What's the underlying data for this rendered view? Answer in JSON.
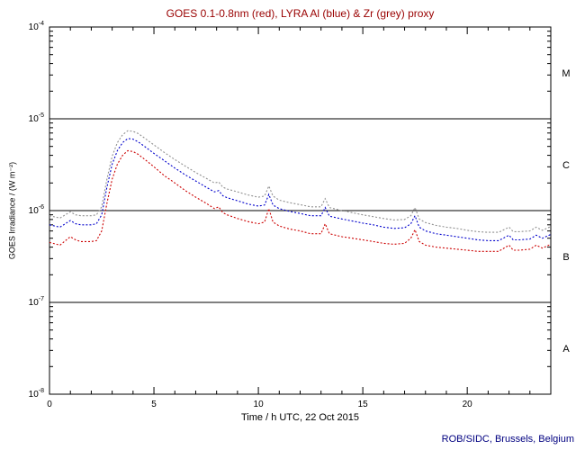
{
  "footer": {
    "credit": "ROB/SIDC, Brussels, Belgium"
  },
  "colors": {
    "title_text": "#990000",
    "footer_text": "#000080",
    "axis": "#000000",
    "goes_red": "#cc0000",
    "lyra_al_blue": "#0000cc",
    "lyra_zr_grey": "#909090"
  },
  "chart_data": {
    "type": "line",
    "title": "GOES 0.1-0.8nm (red), LYRA Al (blue) & Zr (grey) proxy",
    "xlabel": "Time / h UTC, 22 Oct 2015",
    "ylabel": "GOES Irradiance / (W m⁻²)",
    "x_range": [
      0,
      24
    ],
    "y_log_range": [
      -8,
      -4
    ],
    "x_major_ticks": [
      0,
      5,
      10,
      15,
      20
    ],
    "x_minor_step": 1,
    "y_decades": [
      -8,
      -7,
      -6,
      -5,
      -4
    ],
    "hlines_log": [
      -5,
      -6,
      -7
    ],
    "grid": false,
    "legend": "in title (color-coded)",
    "flare_classes": [
      {
        "label": "M",
        "log_center": -4.5
      },
      {
        "label": "C",
        "log_center": -5.5
      },
      {
        "label": "B",
        "log_center": -6.5
      },
      {
        "label": "A",
        "log_center": -7.5
      }
    ],
    "x": [
      0,
      0.5,
      1,
      1.25,
      1.5,
      2,
      2.25,
      2.5,
      2.75,
      3,
      3.25,
      3.5,
      3.75,
      4,
      4.25,
      4.5,
      5,
      5.5,
      6,
      6.5,
      7,
      7.5,
      7.9,
      8.1,
      8.3,
      8.5,
      9,
      9.5,
      10,
      10.3,
      10.5,
      10.7,
      11,
      11.5,
      12,
      12.5,
      13,
      13.2,
      13.4,
      14,
      14.5,
      15,
      15.5,
      16,
      16.5,
      17,
      17.3,
      17.5,
      17.7,
      18,
      18.5,
      19,
      19.5,
      20,
      20.5,
      21,
      21.5,
      22,
      22.2,
      22.5,
      23,
      23.3,
      23.6,
      24
    ],
    "series": [
      {
        "name": "LYRA Zr proxy",
        "key": "lyra-zr",
        "color": "#909090",
        "values": [
          8.8e-07,
          8.3e-07,
          9.7e-07,
          9e-07,
          8.8e-07,
          8.8e-07,
          9e-07,
          1.1e-06,
          2.2e-06,
          3.9e-06,
          5.5e-06,
          6.7e-06,
          7.4e-06,
          7.3e-06,
          6.9e-06,
          6.3e-06,
          5.2e-06,
          4.3e-06,
          3.6e-06,
          3.05e-06,
          2.6e-06,
          2.25e-06,
          2e-06,
          2.05e-06,
          1.8e-06,
          1.72e-06,
          1.6e-06,
          1.48e-06,
          1.4e-06,
          1.44e-06,
          1.85e-06,
          1.44e-06,
          1.3e-06,
          1.22e-06,
          1.16e-06,
          1.1e-06,
          1.1e-06,
          1.35e-06,
          1.08e-06,
          1e-06,
          9.5e-07,
          9e-07,
          8.6e-07,
          8.2e-07,
          7.9e-07,
          8e-07,
          8.8e-07,
          1.08e-06,
          8.1e-07,
          7.4e-07,
          6.9e-07,
          6.6e-07,
          6.4e-07,
          6.1e-07,
          5.9e-07,
          5.8e-07,
          5.8e-07,
          6.6e-07,
          5.9e-07,
          5.9e-07,
          6e-07,
          6.6e-07,
          6.1e-07,
          6.7e-07
        ]
      },
      {
        "name": "LYRA Al proxy",
        "key": "lyra-al",
        "color": "#0000cc",
        "values": [
          7e-07,
          6.6e-07,
          7.8e-07,
          7.2e-07,
          7e-07,
          7e-07,
          7.2e-07,
          9e-07,
          1.8e-06,
          3.2e-06,
          4.5e-06,
          5.5e-06,
          6.1e-06,
          6e-06,
          5.6e-06,
          5.1e-06,
          4.2e-06,
          3.5e-06,
          2.9e-06,
          2.45e-06,
          2.1e-06,
          1.8e-06,
          1.6e-06,
          1.65e-06,
          1.45e-06,
          1.38e-06,
          1.28e-06,
          1.18e-06,
          1.12e-06,
          1.15e-06,
          1.5e-06,
          1.15e-06,
          1.05e-06,
          9.8e-07,
          9.3e-07,
          8.8e-07,
          8.8e-07,
          1.08e-06,
          8.7e-07,
          8.1e-07,
          7.7e-07,
          7.3e-07,
          7e-07,
          6.6e-07,
          6.4e-07,
          6.5e-07,
          7.2e-07,
          8.8e-07,
          6.6e-07,
          6e-07,
          5.6e-07,
          5.4e-07,
          5.2e-07,
          5e-07,
          4.8e-07,
          4.7e-07,
          4.7e-07,
          5.4e-07,
          4.8e-07,
          4.8e-07,
          4.9e-07,
          5.4e-07,
          5e-07,
          5.5e-07
        ]
      },
      {
        "name": "GOES 0.1-0.8nm",
        "key": "goes",
        "color": "#cc0000",
        "values": [
          4.5e-07,
          4.2e-07,
          5.2e-07,
          4.8e-07,
          4.6e-07,
          4.6e-07,
          4.7e-07,
          6e-07,
          1.2e-06,
          2.2e-06,
          3.2e-06,
          4e-06,
          4.5e-06,
          4.4e-06,
          4.1e-06,
          3.7e-06,
          3e-06,
          2.4e-06,
          2e-06,
          1.65e-06,
          1.4e-06,
          1.2e-06,
          1.05e-06,
          1.1e-06,
          9.5e-07,
          9e-07,
          8.2e-07,
          7.6e-07,
          7.2e-07,
          7.5e-07,
          1.05e-06,
          7.5e-07,
          6.8e-07,
          6.3e-07,
          6e-07,
          5.6e-07,
          5.6e-07,
          7.2e-07,
          5.6e-07,
          5.2e-07,
          5e-07,
          4.8e-07,
          4.6e-07,
          4.4e-07,
          4.3e-07,
          4.4e-07,
          5e-07,
          6.2e-07,
          4.6e-07,
          4.2e-07,
          4e-07,
          3.9e-07,
          3.8e-07,
          3.7e-07,
          3.6e-07,
          3.6e-07,
          3.6e-07,
          4.2e-07,
          3.7e-07,
          3.7e-07,
          3.8e-07,
          4.2e-07,
          3.9e-07,
          4.3e-07
        ]
      }
    ]
  }
}
